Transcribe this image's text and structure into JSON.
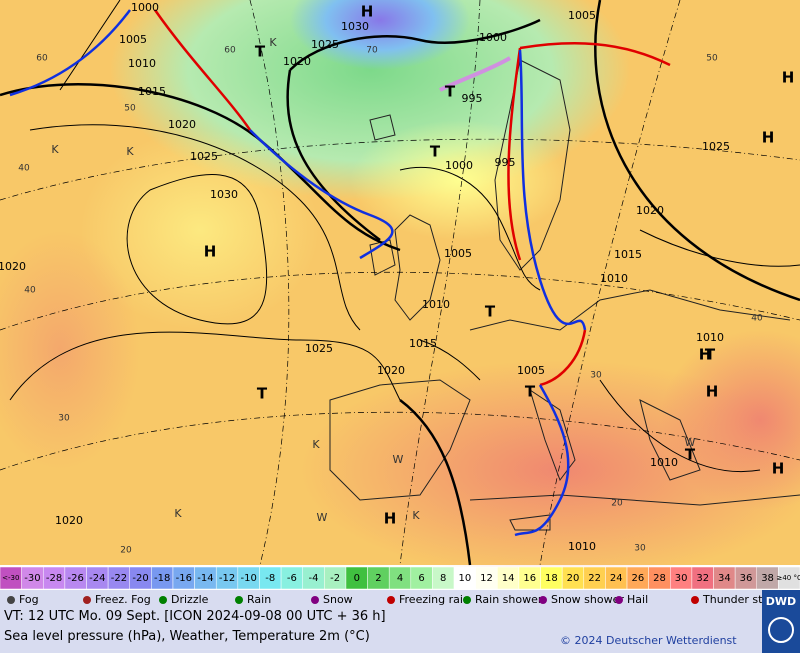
{
  "map": {
    "isobar_labels": [
      "1000",
      "1005",
      "1010",
      "1015",
      "1020",
      "1025",
      "1030",
      "1030",
      "1025",
      "1020",
      "1000",
      "1005",
      "995",
      "1000",
      "995",
      "1005",
      "1010",
      "1015",
      "1020",
      "1025",
      "1025",
      "1020",
      "1015",
      "1010",
      "1010",
      "1005",
      "1010",
      "1010",
      "1020",
      "1020"
    ],
    "temperature_labels": [
      "60",
      "50",
      "40",
      "30",
      "60",
      "70",
      "50",
      "40",
      "20",
      "40",
      "30",
      "30",
      "20"
    ],
    "center_labels": [
      "H",
      "H",
      "H",
      "H",
      "H",
      "H",
      "H",
      "H",
      "H",
      "T",
      "T",
      "T",
      "T",
      "T",
      "T",
      "T",
      "T",
      "T",
      "K",
      "K",
      "K",
      "K",
      "K",
      "K",
      "W",
      "W",
      "W"
    ]
  },
  "scale": {
    "labels": [
      "<-30",
      "-30",
      "-28",
      "-26",
      "-24",
      "-22",
      "-20",
      "-18",
      "-16",
      "-14",
      "-12",
      "-10",
      "-8",
      "-6",
      "-4",
      "-2",
      "0",
      "2",
      "4",
      "6",
      "8",
      "10",
      "12",
      "14",
      "16",
      "18",
      "20",
      "22",
      "24",
      "26",
      "28",
      "30",
      "32",
      "34",
      "36",
      "38",
      "≥40 °C"
    ],
    "colors": [
      "#c050c0",
      "#d088e8",
      "#c888f0",
      "#b888f0",
      "#a888f0",
      "#9888f0",
      "#8888f0",
      "#7898f0",
      "#78a8f0",
      "#78b8f0",
      "#78c8f0",
      "#78d8f0",
      "#78e8f0",
      "#88f0e0",
      "#98f0d0",
      "#a8f0c0",
      "#40c040",
      "#60d060",
      "#80e080",
      "#a0f0a0",
      "#c8f8c8",
      "#ffffff",
      "#fffff0",
      "#ffffc8",
      "#ffff90",
      "#ffff60",
      "#ffe050",
      "#ffd050",
      "#ffc050",
      "#ffa858",
      "#ff9060",
      "#ff8080",
      "#f07080",
      "#e08888",
      "#d09898",
      "#c0a8a8",
      "#e0e0e0"
    ]
  },
  "legend": [
    "Fog",
    "Freez. Fog",
    "Drizzle",
    "Rain",
    "Snow",
    "Freezing rain",
    "Rain shower",
    "Snow shower",
    "Hail",
    "Thunder storm"
  ],
  "footer": {
    "valid_time": "VT: 12 UTC Mo.  09 Sept. [ICON 2024-09-08  00 UTC + 36 h]",
    "description": "Sea level pressure (hPa), Weather, Temperature 2m (°C)",
    "copyright": "© 2024 Deutscher Wetterdienst",
    "logo": "DWD"
  }
}
